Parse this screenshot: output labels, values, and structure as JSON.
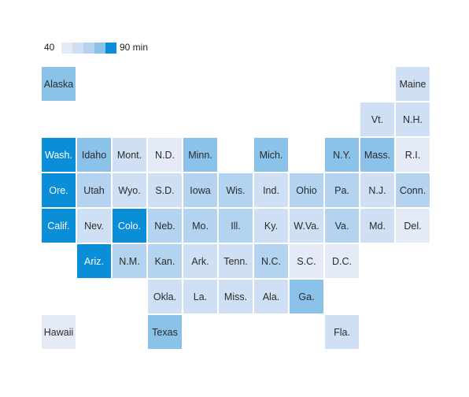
{
  "legend": {
    "min_label": "40",
    "max_label": "90 min",
    "min": 40,
    "max": 90,
    "colors": [
      "#e4ebf7",
      "#cfe0f4",
      "#b3d3f0",
      "#8ac2ea",
      "#0a8ed8"
    ]
  },
  "chart_data": {
    "type": "heatmap",
    "title": "",
    "value_unit": "min",
    "tiles": [
      {
        "label": "Alaska",
        "row": 0,
        "col": 0,
        "level": 3
      },
      {
        "label": "Maine",
        "row": 0,
        "col": 10,
        "level": 1
      },
      {
        "label": "Vt.",
        "row": 1,
        "col": 9,
        "level": 1
      },
      {
        "label": "N.H.",
        "row": 1,
        "col": 10,
        "level": 1
      },
      {
        "label": "Wash.",
        "row": 2,
        "col": 0,
        "level": 4
      },
      {
        "label": "Idaho",
        "row": 2,
        "col": 1,
        "level": 3
      },
      {
        "label": "Mont.",
        "row": 2,
        "col": 2,
        "level": 1
      },
      {
        "label": "N.D.",
        "row": 2,
        "col": 3,
        "level": 0
      },
      {
        "label": "Minn.",
        "row": 2,
        "col": 4,
        "level": 3
      },
      {
        "label": "Mich.",
        "row": 2,
        "col": 6,
        "level": 3
      },
      {
        "label": "N.Y.",
        "row": 2,
        "col": 8,
        "level": 3
      },
      {
        "label": "Mass.",
        "row": 2,
        "col": 9,
        "level": 3
      },
      {
        "label": "R.I.",
        "row": 2,
        "col": 10,
        "level": 0
      },
      {
        "label": "Ore.",
        "row": 3,
        "col": 0,
        "level": 4
      },
      {
        "label": "Utah",
        "row": 3,
        "col": 1,
        "level": 2
      },
      {
        "label": "Wyo.",
        "row": 3,
        "col": 2,
        "level": 1
      },
      {
        "label": "S.D.",
        "row": 3,
        "col": 3,
        "level": 1
      },
      {
        "label": "Iowa",
        "row": 3,
        "col": 4,
        "level": 2
      },
      {
        "label": "Wis.",
        "row": 3,
        "col": 5,
        "level": 2
      },
      {
        "label": "Ind.",
        "row": 3,
        "col": 6,
        "level": 1
      },
      {
        "label": "Ohio",
        "row": 3,
        "col": 7,
        "level": 2
      },
      {
        "label": "Pa.",
        "row": 3,
        "col": 8,
        "level": 2
      },
      {
        "label": "N.J.",
        "row": 3,
        "col": 9,
        "level": 1
      },
      {
        "label": "Conn.",
        "row": 3,
        "col": 10,
        "level": 2
      },
      {
        "label": "Calif.",
        "row": 4,
        "col": 0,
        "level": 4
      },
      {
        "label": "Nev.",
        "row": 4,
        "col": 1,
        "level": 1
      },
      {
        "label": "Colo.",
        "row": 4,
        "col": 2,
        "level": 4
      },
      {
        "label": "Neb.",
        "row": 4,
        "col": 3,
        "level": 2
      },
      {
        "label": "Mo.",
        "row": 4,
        "col": 4,
        "level": 2
      },
      {
        "label": "Ill.",
        "row": 4,
        "col": 5,
        "level": 2
      },
      {
        "label": "Ky.",
        "row": 4,
        "col": 6,
        "level": 1
      },
      {
        "label": "W.Va.",
        "row": 4,
        "col": 7,
        "level": 1
      },
      {
        "label": "Va.",
        "row": 4,
        "col": 8,
        "level": 2
      },
      {
        "label": "Md.",
        "row": 4,
        "col": 9,
        "level": 1
      },
      {
        "label": "Del.",
        "row": 4,
        "col": 10,
        "level": 0
      },
      {
        "label": "Ariz.",
        "row": 5,
        "col": 1,
        "level": 4
      },
      {
        "label": "N.M.",
        "row": 5,
        "col": 2,
        "level": 2
      },
      {
        "label": "Kan.",
        "row": 5,
        "col": 3,
        "level": 2
      },
      {
        "label": "Ark.",
        "row": 5,
        "col": 4,
        "level": 1
      },
      {
        "label": "Tenn.",
        "row": 5,
        "col": 5,
        "level": 1
      },
      {
        "label": "N.C.",
        "row": 5,
        "col": 6,
        "level": 2
      },
      {
        "label": "S.C.",
        "row": 5,
        "col": 7,
        "level": 0
      },
      {
        "label": "D.C.",
        "row": 5,
        "col": 8,
        "level": 0
      },
      {
        "label": "Okla.",
        "row": 6,
        "col": 3,
        "level": 1
      },
      {
        "label": "La.",
        "row": 6,
        "col": 4,
        "level": 1
      },
      {
        "label": "Miss.",
        "row": 6,
        "col": 5,
        "level": 1
      },
      {
        "label": "Ala.",
        "row": 6,
        "col": 6,
        "level": 1
      },
      {
        "label": "Ga.",
        "row": 6,
        "col": 7,
        "level": 3
      },
      {
        "label": "Hawaii",
        "row": 7,
        "col": 0,
        "level": 0
      },
      {
        "label": "Texas",
        "row": 7,
        "col": 3,
        "level": 3
      },
      {
        "label": "Fla.",
        "row": 7,
        "col": 8,
        "level": 1
      }
    ]
  }
}
